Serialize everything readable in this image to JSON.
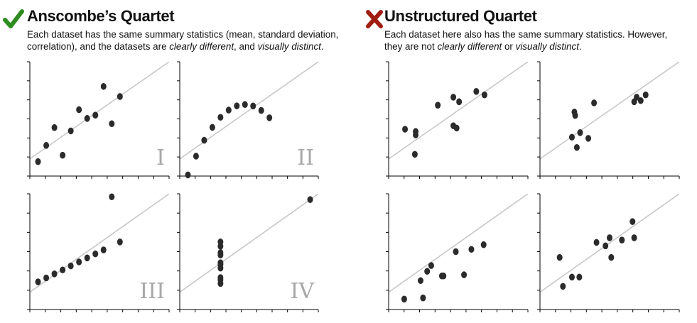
{
  "left": {
    "title": "Anscombe’s Quartet",
    "icon": "checkmark-icon",
    "icon_color": "#2e8b20",
    "desc_line1": "Each dataset has the same summary statistics (mean, standard deviation,",
    "desc_line2_a": "correlation), and the datasets are ",
    "desc_line2_b": "clearly different",
    "desc_line2_c": ", and ",
    "desc_line2_d": "visually distinct",
    "desc_line2_e": "."
  },
  "right": {
    "title": "Unstructured Quartet",
    "icon": "x-mark-icon",
    "icon_color": "#a01d12",
    "desc_line1": "Each dataset here also has the same summary statistics. However,",
    "desc_line2_a": "they are not ",
    "desc_line2_b": "clearly different",
    "desc_line2_c": " or ",
    "desc_line2_d": "visually distinct",
    "desc_line2_e": "."
  },
  "colors": {
    "point": "#2b2b2b",
    "fit_line": "#c8c8c8",
    "roman_label": "#a8a8a8",
    "axis": "#000000"
  },
  "chart_data": [
    {
      "type": "scatter",
      "title": "I",
      "group": "Anscombe’s Quartet",
      "xlim": [
        3,
        20
      ],
      "ylim": [
        3,
        13
      ],
      "x": [
        10,
        8,
        13,
        9,
        11,
        14,
        6,
        4,
        12,
        7,
        5
      ],
      "y": [
        8.04,
        6.95,
        7.58,
        8.81,
        8.33,
        9.96,
        7.24,
        4.26,
        10.84,
        4.82,
        5.68
      ],
      "fit": {
        "intercept": 3.0,
        "slope": 0.5
      }
    },
    {
      "type": "scatter",
      "title": "II",
      "group": "Anscombe’s Quartet",
      "xlim": [
        3,
        20
      ],
      "ylim": [
        3,
        13
      ],
      "x": [
        10,
        8,
        13,
        9,
        11,
        14,
        6,
        4,
        12,
        7,
        5
      ],
      "y": [
        9.14,
        8.14,
        8.74,
        8.77,
        9.26,
        8.1,
        6.13,
        3.1,
        9.13,
        7.26,
        4.74
      ],
      "fit": {
        "intercept": 3.0,
        "slope": 0.5
      }
    },
    {
      "type": "scatter",
      "title": "III",
      "group": "Anscombe’s Quartet",
      "xlim": [
        3,
        20
      ],
      "ylim": [
        3,
        13
      ],
      "x": [
        10,
        8,
        13,
        9,
        11,
        14,
        6,
        4,
        12,
        7,
        5
      ],
      "y": [
        7.46,
        6.77,
        12.74,
        7.11,
        7.81,
        8.84,
        6.08,
        5.39,
        8.15,
        6.42,
        5.73
      ],
      "fit": {
        "intercept": 3.0,
        "slope": 0.5
      }
    },
    {
      "type": "scatter",
      "title": "IV",
      "group": "Anscombe’s Quartet",
      "xlim": [
        3,
        20
      ],
      "ylim": [
        3,
        13
      ],
      "x": [
        8,
        8,
        8,
        8,
        8,
        8,
        8,
        19,
        8,
        8,
        8
      ],
      "y": [
        6.58,
        5.76,
        7.71,
        8.84,
        8.47,
        7.04,
        5.25,
        12.5,
        5.56,
        7.91,
        6.89
      ],
      "fit": {
        "intercept": 3.0,
        "slope": 0.5
      }
    },
    {
      "type": "scatter",
      "group": "Unstructured Quartet",
      "xlim": [
        3,
        20
      ],
      "ylim": [
        3,
        13
      ],
      "x": [
        5,
        6.3,
        6.3,
        6.2,
        9,
        10.9,
        10.9,
        11.3,
        11.6,
        13.7,
        14.7
      ],
      "y": [
        7.1,
        6.6,
        6.9,
        4.9,
        9.2,
        7.4,
        9.9,
        7.2,
        9.5,
        10.4,
        10.1
      ],
      "fit": {
        "intercept": 3.0,
        "slope": 0.5
      }
    },
    {
      "type": "scatter",
      "group": "Unstructured Quartet",
      "xlim": [
        3,
        20
      ],
      "ylim": [
        3,
        13
      ],
      "x": [
        6.9,
        7.2,
        7.3,
        7.5,
        7.9,
        8.9,
        9.6,
        14.5,
        14.8,
        15.3,
        15.9
      ],
      "y": [
        6.4,
        8.6,
        8.3,
        5.5,
        6.8,
        6.3,
        9.4,
        9.5,
        9.9,
        9.6,
        10.1
      ],
      "fit": {
        "intercept": 3.0,
        "slope": 0.5
      }
    },
    {
      "type": "scatter",
      "group": "Unstructured Quartet",
      "xlim": [
        3,
        20
      ],
      "ylim": [
        3,
        13
      ],
      "x": [
        4.9,
        6.9,
        7.2,
        7.7,
        8.2,
        9.5,
        9.7,
        11.2,
        12.2,
        13.1,
        14.6
      ],
      "y": [
        3.9,
        5.5,
        4.0,
        6.3,
        6.8,
        5.9,
        5.9,
        8.0,
        6.0,
        8.2,
        8.6
      ],
      "fit": {
        "intercept": 3.0,
        "slope": 0.5
      }
    },
    {
      "type": "scatter",
      "group": "Unstructured Quartet",
      "xlim": [
        3,
        20
      ],
      "ylim": [
        3,
        13
      ],
      "x": [
        5.4,
        5.8,
        6.9,
        7.8,
        9.9,
        11.0,
        11.5,
        11.7,
        13.0,
        14.3,
        14.5
      ],
      "y": [
        7.5,
        5.0,
        5.8,
        5.8,
        8.8,
        8.5,
        9.2,
        7.5,
        9.0,
        10.6,
        9.2
      ],
      "fit": {
        "intercept": 3.0,
        "slope": 0.5
      }
    }
  ]
}
